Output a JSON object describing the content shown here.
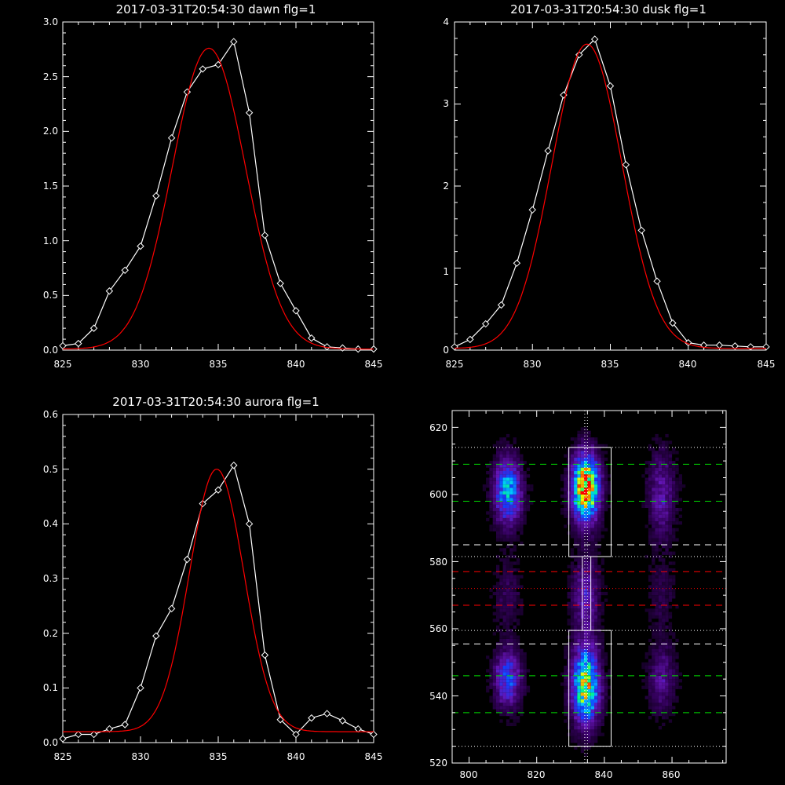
{
  "chart_data": [
    {
      "type": "line",
      "title": "2017-03-31T20:54:30 dawn flg=1",
      "xlim": [
        825,
        845
      ],
      "ylim": [
        0,
        3.0
      ],
      "xticks": [
        825,
        830,
        835,
        840,
        845
      ],
      "xtick_labels": [
        "825",
        "830",
        "835",
        "840",
        "845"
      ],
      "yticks": [
        0,
        0.5,
        1.0,
        1.5,
        2.0,
        2.5,
        3.0
      ],
      "ytick_labels": [
        "0.0",
        "0.5",
        "1.0",
        "1.5",
        "2.0",
        "2.5",
        "3.0"
      ],
      "series": [
        {
          "style": "diamonds-line",
          "color": "#ffffff",
          "x": [
            825,
            826,
            827,
            828,
            829,
            830,
            831,
            832,
            833,
            834,
            835,
            836,
            837,
            838,
            839,
            840,
            841,
            842,
            843,
            844,
            845
          ],
          "y": [
            0.04,
            0.06,
            0.2,
            0.54,
            0.73,
            0.95,
            1.41,
            1.94,
            2.36,
            2.57,
            2.61,
            2.82,
            2.17,
            1.05,
            0.61,
            0.36,
            0.11,
            0.03,
            0.02,
            0.01,
            0.01
          ]
        },
        {
          "style": "gaussian-fit",
          "color": "#ff0000",
          "amplitude": 2.75,
          "center": 834.4,
          "sigma": 2.35,
          "offset": 0.01
        }
      ]
    },
    {
      "type": "line",
      "title": "2017-03-31T20:54:30 dusk flg=1",
      "xlim": [
        825,
        845
      ],
      "ylim": [
        0,
        4.0
      ],
      "xticks": [
        825,
        830,
        835,
        840,
        845
      ],
      "xtick_labels": [
        "825",
        "830",
        "835",
        "840",
        "845"
      ],
      "yticks": [
        0,
        1,
        2,
        3,
        4
      ],
      "ytick_labels": [
        "0",
        "1",
        "2",
        "3",
        "4"
      ],
      "series": [
        {
          "style": "diamonds-line",
          "color": "#ffffff",
          "x": [
            825,
            826,
            827,
            828,
            829,
            830,
            831,
            832,
            833,
            834,
            835,
            836,
            837,
            838,
            839,
            840,
            841,
            842,
            843,
            844,
            845
          ],
          "y": [
            0.04,
            0.13,
            0.32,
            0.55,
            1.06,
            1.71,
            2.43,
            3.11,
            3.6,
            3.79,
            3.22,
            2.26,
            1.46,
            0.84,
            0.33,
            0.09,
            0.06,
            0.06,
            0.05,
            0.04,
            0.04
          ]
        },
        {
          "style": "gaussian-fit",
          "color": "#ff0000",
          "amplitude": 3.71,
          "center": 833.5,
          "sigma": 2.25,
          "offset": 0.02
        }
      ]
    },
    {
      "type": "line",
      "title": "2017-03-31T20:54:30 aurora flg=1",
      "xlim": [
        825,
        845
      ],
      "ylim": [
        0,
        0.6
      ],
      "xticks": [
        825,
        830,
        835,
        840,
        845
      ],
      "xtick_labels": [
        "825",
        "830",
        "835",
        "840",
        "845"
      ],
      "yticks": [
        0,
        0.1,
        0.2,
        0.3,
        0.4,
        0.5,
        0.6
      ],
      "ytick_labels": [
        "0.0",
        "0.1",
        "0.2",
        "0.3",
        "0.4",
        "0.5",
        "0.6"
      ],
      "series": [
        {
          "style": "diamonds-line",
          "color": "#ffffff",
          "x": [
            825,
            826,
            827,
            828,
            829,
            830,
            831,
            832,
            833,
            834,
            835,
            836,
            837,
            838,
            839,
            840,
            841,
            842,
            843,
            844,
            845
          ],
          "y": [
            0.007,
            0.015,
            0.015,
            0.025,
            0.033,
            0.1,
            0.195,
            0.245,
            0.335,
            0.437,
            0.462,
            0.507,
            0.4,
            0.16,
            0.042,
            0.015,
            0.045,
            0.053,
            0.04,
            0.025,
            0.015
          ]
        },
        {
          "style": "gaussian-fit",
          "color": "#ff0000",
          "amplitude": 0.48,
          "center": 834.9,
          "sigma": 1.75,
          "offset": 0.02
        }
      ]
    },
    {
      "type": "heatmap",
      "title": "",
      "xlim": [
        795,
        876
      ],
      "ylim": [
        520,
        625
      ],
      "xticks": [
        800,
        820,
        840,
        860
      ],
      "xtick_labels": [
        "800",
        "820",
        "840",
        "860"
      ],
      "yticks": [
        520,
        540,
        560,
        580,
        600,
        620
      ],
      "ytick_labels": [
        "520",
        "540",
        "560",
        "580",
        "600",
        "620"
      ],
      "colormap": "rainbow",
      "emission_columns": [
        {
          "center_x": 811.5,
          "width": 6.5,
          "blobs": [
            {
              "y": 601,
              "sigma": 7,
              "amp": 0.55
            },
            {
              "y": 545,
              "sigma": 6,
              "amp": 0.42
            },
            {
              "y": 570,
              "sigma": 8,
              "amp": 0.12
            }
          ]
        },
        {
          "center_x": 834.5,
          "width": 6.5,
          "blobs": [
            {
              "y": 602,
              "sigma": 7,
              "amp": 0.95
            },
            {
              "y": 543,
              "sigma": 8,
              "amp": 0.78
            },
            {
              "y": 570,
              "sigma": 8,
              "amp": 0.28
            }
          ]
        },
        {
          "center_x": 857,
          "width": 6.5,
          "blobs": [
            {
              "y": 600,
              "sigma": 9,
              "amp": 0.26
            },
            {
              "y": 545,
              "sigma": 7,
              "amp": 0.22
            },
            {
              "y": 570,
              "sigma": 8,
              "amp": 0.1
            }
          ]
        }
      ],
      "boxes": [
        {
          "color": "#ffffff",
          "x0": 829.5,
          "x1": 842,
          "y0": 581.5,
          "y1": 614
        },
        {
          "color": "#ffffff",
          "x0": 829.5,
          "x1": 842,
          "y0": 525,
          "y1": 559.5
        },
        {
          "color": "#ffffff",
          "x0": 833.5,
          "x1": 836,
          "y0": 559.5,
          "y1": 581.5
        }
      ],
      "hlines": [
        {
          "y": 614,
          "color": "#ffffff",
          "style": "dotted"
        },
        {
          "y": 609,
          "color": "#00dd00",
          "style": "dashed"
        },
        {
          "y": 598,
          "color": "#00dd00",
          "style": "dashed"
        },
        {
          "y": 585,
          "color": "#ffffff",
          "style": "dashed"
        },
        {
          "y": 581.5,
          "color": "#ffffff",
          "style": "dotted"
        },
        {
          "y": 577,
          "color": "#ff0000",
          "style": "dashed"
        },
        {
          "y": 572,
          "color": "#ff0000",
          "style": "dotted"
        },
        {
          "y": 567,
          "color": "#ff0000",
          "style": "dashed"
        },
        {
          "y": 559.5,
          "color": "#ffffff",
          "style": "dotted"
        },
        {
          "y": 555.5,
          "color": "#ffffff",
          "style": "dashed"
        },
        {
          "y": 546,
          "color": "#00dd00",
          "style": "dashed"
        },
        {
          "y": 535,
          "color": "#00dd00",
          "style": "dashed"
        },
        {
          "y": 525,
          "color": "#ffffff",
          "style": "dotted"
        }
      ],
      "vlines": [
        {
          "x": 834.2,
          "color": "#ffffff",
          "style": "dotted"
        },
        {
          "x": 835.0,
          "color": "#ffffff",
          "style": "dotted"
        }
      ]
    }
  ]
}
